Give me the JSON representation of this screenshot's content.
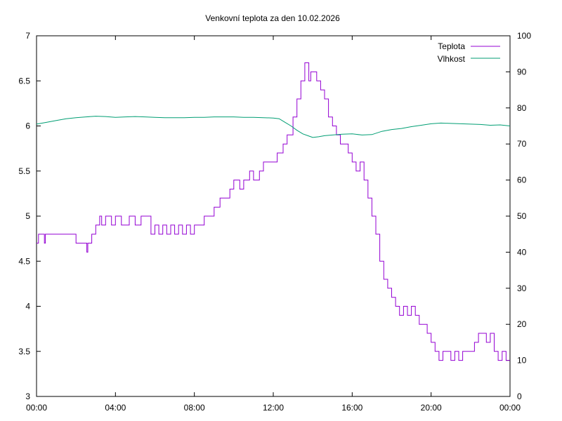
{
  "chart_data": {
    "type": "line",
    "title": "Venkovní teplota za den 10.02.2026",
    "xlabel": "",
    "ylabel": "",
    "y2label": "",
    "x_ticks": [
      "00:00",
      "04:00",
      "08:00",
      "12:00",
      "16:00",
      "20:00",
      "00:00"
    ],
    "xlim": [
      0,
      24
    ],
    "ylim": [
      3,
      7
    ],
    "y_ticks": [
      "3",
      "3.5",
      "4",
      "4.5",
      "5",
      "5.5",
      "6",
      "6.5",
      "7"
    ],
    "y2lim": [
      0,
      100
    ],
    "y2_ticks": [
      "0",
      "10",
      "20",
      "30",
      "40",
      "50",
      "60",
      "70",
      "80",
      "90",
      "100"
    ],
    "grid": false,
    "legend_position": "top-right",
    "series": [
      {
        "name": "Teplota",
        "axis": "left",
        "color": "#9400d3",
        "x": [
          0,
          0.1,
          0.15,
          0.2,
          0.4,
          0.45,
          0.5,
          1.0,
          1.5,
          2.0,
          2.5,
          2.55,
          2.6,
          2.8,
          3.0,
          3.2,
          3.3,
          3.5,
          3.8,
          4.0,
          4.3,
          4.5,
          4.7,
          5.0,
          5.3,
          5.5,
          5.8,
          6.0,
          6.2,
          6.4,
          6.6,
          6.8,
          7.0,
          7.2,
          7.4,
          7.6,
          7.8,
          8.0,
          8.3,
          8.5,
          8.8,
          9.0,
          9.3,
          9.5,
          9.8,
          10.0,
          10.3,
          10.5,
          10.8,
          11.0,
          11.3,
          11.5,
          11.8,
          12.0,
          12.2,
          12.5,
          12.7,
          13.0,
          13.2,
          13.4,
          13.6,
          13.7,
          13.8,
          13.9,
          14.0,
          14.2,
          14.4,
          14.6,
          14.8,
          15.0,
          15.2,
          15.4,
          15.6,
          15.8,
          16.0,
          16.2,
          16.4,
          16.6,
          16.8,
          17.0,
          17.2,
          17.4,
          17.6,
          17.8,
          18.0,
          18.2,
          18.4,
          18.6,
          18.8,
          19.0,
          19.2,
          19.4,
          19.6,
          19.8,
          20.0,
          20.2,
          20.4,
          20.6,
          20.8,
          21.0,
          21.2,
          21.4,
          21.6,
          21.8,
          22.0,
          22.2,
          22.4,
          22.6,
          22.8,
          23.0,
          23.2,
          23.4,
          23.6,
          23.8,
          24.0
        ],
        "values": [
          4.7,
          4.8,
          4.8,
          4.8,
          4.7,
          4.8,
          4.8,
          4.8,
          4.8,
          4.7,
          4.7,
          4.6,
          4.7,
          4.8,
          4.9,
          5.0,
          4.9,
          5.0,
          4.9,
          5.0,
          4.9,
          4.9,
          5.0,
          4.9,
          5.0,
          5.0,
          4.8,
          4.9,
          4.8,
          4.9,
          4.8,
          4.9,
          4.8,
          4.9,
          4.8,
          4.9,
          4.8,
          4.9,
          4.9,
          5.0,
          5.0,
          5.1,
          5.2,
          5.2,
          5.3,
          5.4,
          5.3,
          5.4,
          5.5,
          5.4,
          5.5,
          5.6,
          5.6,
          5.6,
          5.7,
          5.8,
          5.9,
          6.1,
          6.3,
          6.5,
          6.7,
          6.7,
          6.5,
          6.6,
          6.6,
          6.5,
          6.4,
          6.3,
          6.1,
          6.0,
          5.9,
          5.8,
          5.8,
          5.7,
          5.6,
          5.5,
          5.6,
          5.4,
          5.2,
          5.0,
          4.8,
          4.5,
          4.3,
          4.2,
          4.1,
          4.0,
          3.9,
          4.0,
          3.9,
          4.0,
          3.9,
          3.8,
          3.8,
          3.7,
          3.6,
          3.5,
          3.4,
          3.5,
          3.5,
          3.4,
          3.5,
          3.4,
          3.5,
          3.5,
          3.5,
          3.6,
          3.7,
          3.7,
          3.6,
          3.7,
          3.5,
          3.4,
          3.5,
          3.4,
          3.4
        ]
      },
      {
        "name": "Vlhkost",
        "axis": "right",
        "color": "#009e73",
        "x": [
          0,
          0.5,
          1.0,
          1.5,
          2.0,
          2.5,
          3.0,
          3.5,
          4.0,
          4.5,
          5.0,
          5.5,
          6.0,
          6.5,
          7.0,
          7.5,
          8.0,
          8.5,
          9.0,
          9.5,
          10.0,
          10.5,
          11.0,
          11.5,
          12.0,
          12.3,
          12.6,
          12.9,
          13.2,
          13.5,
          13.8,
          14.0,
          14.3,
          14.6,
          15.0,
          15.5,
          16.0,
          16.5,
          17.0,
          17.5,
          18.0,
          18.5,
          19.0,
          19.5,
          20.0,
          20.5,
          21.0,
          21.5,
          22.0,
          22.5,
          23.0,
          23.5,
          24.0
        ],
        "values": [
          75.5,
          76.0,
          76.5,
          77.0,
          77.3,
          77.5,
          77.7,
          77.6,
          77.4,
          77.5,
          77.6,
          77.5,
          77.4,
          77.3,
          77.3,
          77.3,
          77.4,
          77.4,
          77.5,
          77.5,
          77.5,
          77.4,
          77.4,
          77.3,
          77.2,
          77.0,
          76.0,
          75.0,
          73.8,
          72.8,
          72.2,
          71.8,
          72.0,
          72.3,
          72.5,
          72.7,
          72.8,
          72.5,
          72.6,
          73.5,
          74.0,
          74.3,
          74.8,
          75.2,
          75.6,
          75.8,
          75.7,
          75.6,
          75.5,
          75.4,
          75.2,
          75.3,
          75.0
        ]
      }
    ]
  }
}
